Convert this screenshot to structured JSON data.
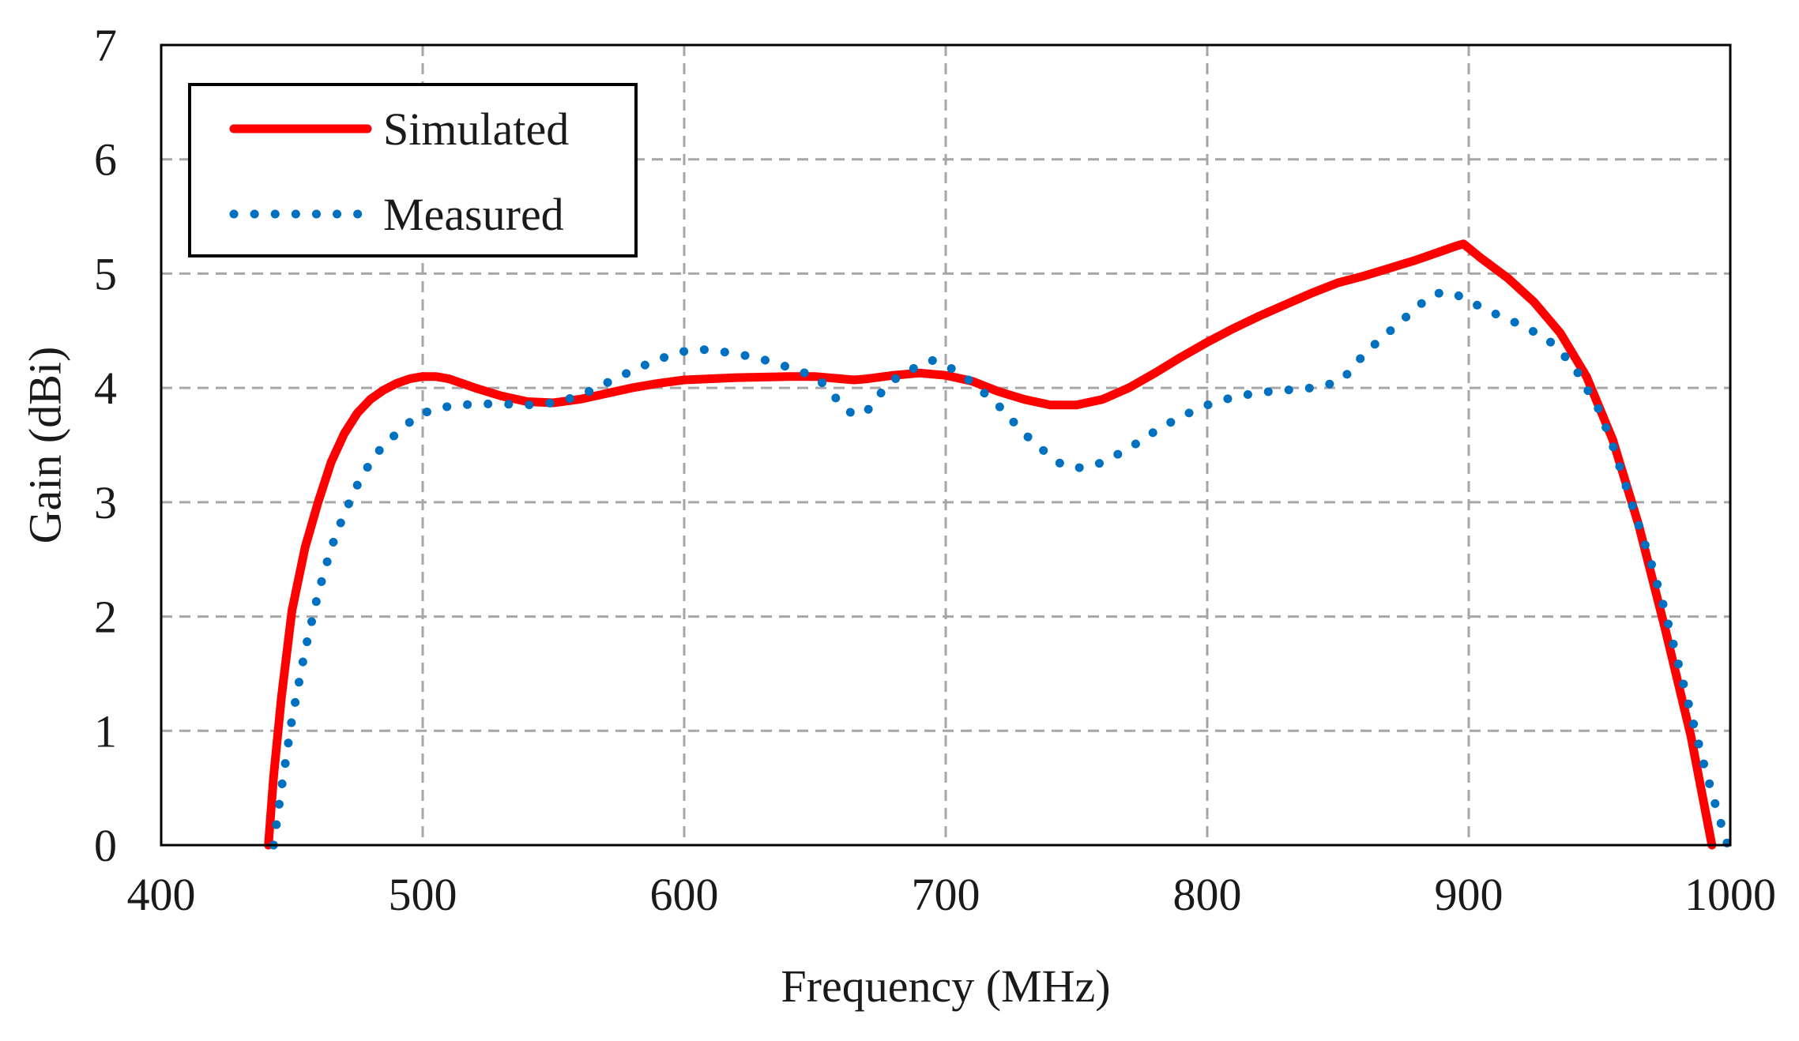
{
  "chart_data": {
    "type": "line",
    "title": "",
    "xlabel": "Frequency (MHz)",
    "ylabel": "Gain (dBi)",
    "xlim": [
      400,
      1000
    ],
    "ylim": [
      0,
      7
    ],
    "x_ticks": [
      400,
      500,
      600,
      700,
      800,
      900,
      1000
    ],
    "y_ticks": [
      0,
      1,
      2,
      3,
      4,
      5,
      6,
      7
    ],
    "x_tick_labels": [
      "400",
      "500",
      "600",
      "700",
      "800",
      "900",
      "1000"
    ],
    "y_tick_labels": [
      "0",
      "1",
      "2",
      "3",
      "4",
      "5",
      "6",
      "7"
    ],
    "grid": true,
    "legend_position": "top-left",
    "series": [
      {
        "name": "Simulated",
        "color": "#ff0000",
        "style": "solid",
        "x": [
          441,
          443,
          446,
          450,
          455,
          460,
          465,
          470,
          475,
          480,
          485,
          490,
          495,
          500,
          505,
          510,
          520,
          530,
          540,
          550,
          560,
          570,
          580,
          590,
          600,
          620,
          640,
          650,
          660,
          665,
          670,
          680,
          690,
          700,
          710,
          720,
          730,
          740,
          750,
          760,
          770,
          780,
          790,
          800,
          810,
          820,
          830,
          840,
          850,
          855,
          860,
          870,
          880,
          890,
          895,
          898,
          905,
          915,
          925,
          935,
          945,
          955,
          965,
          975,
          985,
          993
        ],
        "y": [
          0.0,
          0.6,
          1.3,
          2.05,
          2.6,
          3.0,
          3.35,
          3.6,
          3.78,
          3.9,
          3.98,
          4.04,
          4.08,
          4.1,
          4.1,
          4.08,
          4.0,
          3.93,
          3.88,
          3.87,
          3.9,
          3.95,
          4.0,
          4.04,
          4.07,
          4.09,
          4.1,
          4.1,
          4.08,
          4.07,
          4.08,
          4.11,
          4.13,
          4.11,
          4.06,
          3.97,
          3.9,
          3.85,
          3.85,
          3.9,
          4.0,
          4.13,
          4.27,
          4.4,
          4.52,
          4.63,
          4.73,
          4.83,
          4.92,
          4.95,
          4.98,
          5.05,
          5.12,
          5.2,
          5.24,
          5.26,
          5.13,
          4.96,
          4.75,
          4.48,
          4.1,
          3.55,
          2.8,
          1.9,
          0.95,
          0.0
        ]
      },
      {
        "name": "Measured",
        "color": "#0070c0",
        "style": "dotted",
        "x": [
          443,
          446,
          450,
          455,
          460,
          465,
          470,
          475,
          480,
          485,
          490,
          495,
          500,
          510,
          520,
          530,
          540,
          550,
          560,
          570,
          580,
          590,
          600,
          605,
          610,
          620,
          630,
          640,
          650,
          655,
          660,
          665,
          670,
          675,
          680,
          690,
          695,
          700,
          705,
          710,
          720,
          730,
          740,
          745,
          750,
          755,
          760,
          770,
          780,
          790,
          800,
          810,
          820,
          830,
          840,
          850,
          855,
          860,
          870,
          880,
          885,
          890,
          895,
          900,
          910,
          920,
          930,
          940,
          950,
          955,
          960,
          965,
          970,
          975,
          980,
          985,
          990,
          995,
          999
        ],
        "y": [
          0.0,
          0.5,
          1.1,
          1.7,
          2.2,
          2.6,
          2.9,
          3.15,
          3.35,
          3.5,
          3.6,
          3.7,
          3.78,
          3.84,
          3.86,
          3.86,
          3.85,
          3.87,
          3.93,
          4.04,
          4.15,
          4.25,
          4.32,
          4.34,
          4.33,
          4.3,
          4.25,
          4.18,
          4.1,
          4.0,
          3.85,
          3.76,
          3.8,
          3.95,
          4.07,
          4.2,
          4.24,
          4.2,
          4.13,
          4.05,
          3.85,
          3.6,
          3.4,
          3.32,
          3.3,
          3.31,
          3.35,
          3.47,
          3.62,
          3.75,
          3.85,
          3.92,
          3.96,
          3.98,
          4.0,
          4.05,
          4.15,
          4.3,
          4.5,
          4.7,
          4.8,
          4.84,
          4.82,
          4.76,
          4.65,
          4.55,
          4.43,
          4.2,
          3.8,
          3.5,
          3.15,
          2.8,
          2.45,
          2.05,
          1.6,
          1.15,
          0.7,
          0.3,
          0.0
        ]
      }
    ]
  }
}
